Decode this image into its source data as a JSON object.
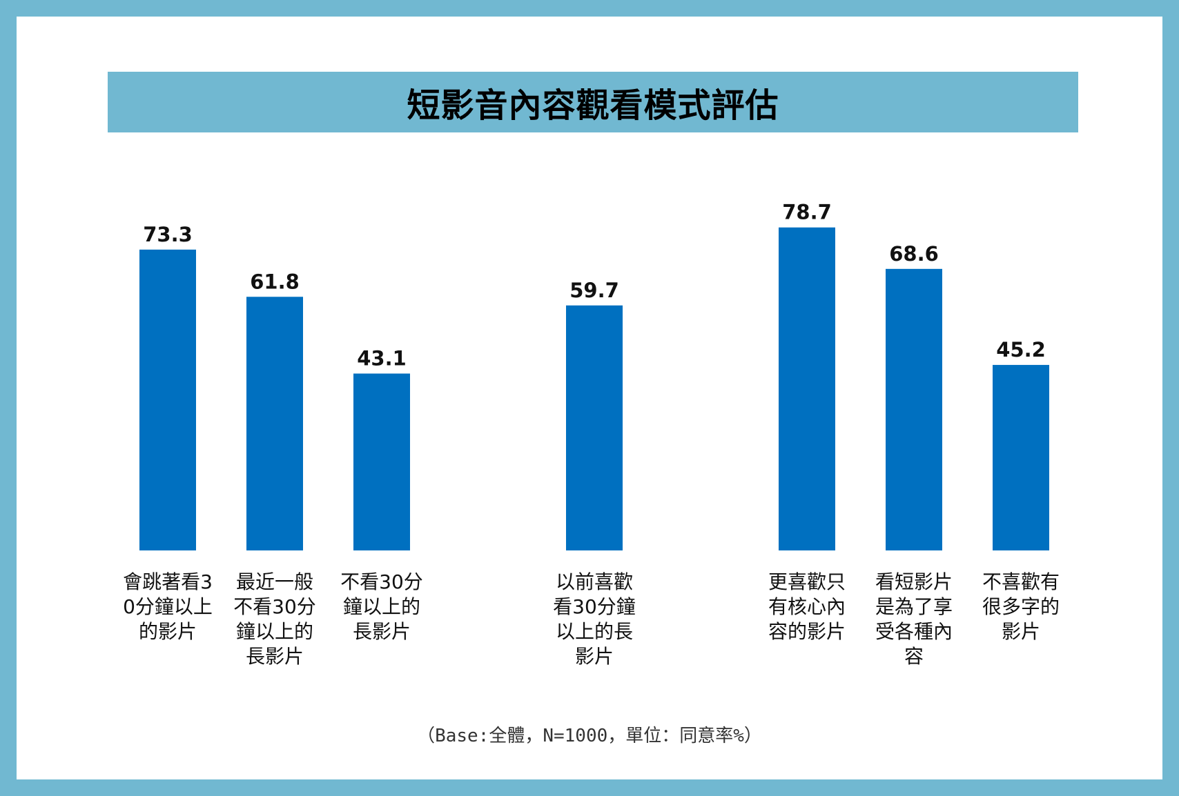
{
  "title": "短影音內容觀看模式評估",
  "footnote": "（Base:全體，N=1000，單位：同意率%）",
  "colors": {
    "bar": "#0070c0",
    "frame": "#71b8d1",
    "title_bar": "#71b8d1"
  },
  "chart_data": {
    "type": "bar",
    "title": "短影音內容觀看模式評估",
    "xlabel": "",
    "ylabel": "",
    "unit": "同意率%",
    "ylim": [
      0,
      100
    ],
    "grid": false,
    "legend": "none",
    "groups": [
      {
        "category_indices": [
          0,
          1,
          2
        ]
      },
      {
        "category_indices": [
          3
        ]
      },
      {
        "category_indices": [
          4,
          5,
          6
        ]
      }
    ],
    "categories": [
      "會跳著看30分鐘以上的影片",
      "最近一般不看30分鐘以上的長影片",
      "不看30分鐘以上的長影片",
      "以前喜歡看30分鐘以上的長影片",
      "更喜歡只有核心內容的影片",
      "看短影片是為了享受各種內容",
      "不喜歡有很多字的影片"
    ],
    "values": [
      73.3,
      61.8,
      43.1,
      59.7,
      78.7,
      68.6,
      45.2
    ],
    "value_labels": [
      "73.3",
      "61.8",
      "43.1",
      "59.7",
      "78.7",
      "68.6",
      "45.2"
    ]
  }
}
